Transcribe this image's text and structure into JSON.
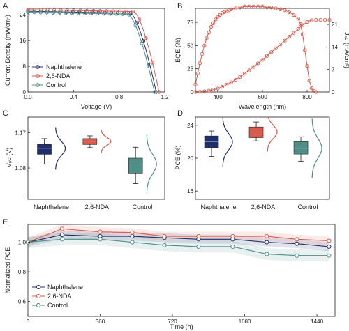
{
  "chart_data": [
    {
      "panel": "A",
      "type": "line",
      "xlabel": "Voltage (V)",
      "ylabel": "Current Density (mA/cm²)",
      "xlim": [
        0,
        1.2
      ],
      "ylim": [
        0,
        26
      ],
      "xticks": [
        "0.0",
        "0.4",
        "0.8",
        "1.2"
      ],
      "xtick_values": [
        0,
        0.4,
        0.8,
        1.2
      ],
      "yticks": [
        "0",
        "8",
        "16",
        "24"
      ],
      "ytick_values": [
        0,
        8,
        16,
        24
      ],
      "legend_loc": "bottom-left",
      "series": [
        {
          "name": "Naphthalene",
          "color": "#1f2f6e",
          "jsc": 25.1,
          "voc": 1.125,
          "knee": 0.9
        },
        {
          "name": "2,6-NDA",
          "color": "#d9594c",
          "jsc": 25.6,
          "voc": 1.15,
          "knee": 0.93
        },
        {
          "name": "Control",
          "color": "#4e8f8a",
          "jsc": 24.8,
          "voc": 1.11,
          "knee": 0.88
        }
      ]
    },
    {
      "panel": "B",
      "type": "line",
      "xlabel": "Wavelength (nm)",
      "ylabel": "EQE (%)",
      "ylabel_right": "Jₛᴄ (mA/cm²)",
      "xlim": [
        300,
        900
      ],
      "ylim": [
        0,
        90
      ],
      "ylim_right": [
        0,
        26
      ],
      "xticks": [
        "400",
        "600",
        "800"
      ],
      "xtick_values": [
        400,
        600,
        800
      ],
      "yticks": [
        "0",
        "25",
        "50",
        "75"
      ],
      "ytick_values": [
        0,
        25,
        50,
        75
      ],
      "yticks_right": [
        "0",
        "7",
        "14",
        "21"
      ],
      "ytick_right_values": [
        0,
        7,
        14,
        21
      ],
      "color": "#d9594c",
      "eqe": {
        "x": [
          300,
          310,
          320,
          330,
          340,
          350,
          360,
          370,
          380,
          390,
          400,
          410,
          420,
          430,
          440,
          450,
          460,
          480,
          500,
          520,
          540,
          560,
          580,
          600,
          620,
          640,
          660,
          680,
          700,
          720,
          740,
          760,
          770,
          780,
          790,
          800,
          810,
          820,
          830,
          840
        ],
        "y": [
          8,
          20,
          31,
          41,
          50,
          58,
          64,
          70,
          74,
          78,
          81,
          83,
          85,
          86,
          87,
          88,
          89,
          90,
          91,
          92,
          92,
          92,
          92,
          92,
          91,
          91,
          90,
          89,
          88,
          86,
          83,
          79,
          73,
          62,
          45,
          28,
          12,
          4,
          1,
          0
        ]
      },
      "jsc_integrated": {
        "x": [
          300,
          320,
          340,
          360,
          380,
          400,
          420,
          440,
          460,
          480,
          500,
          520,
          540,
          560,
          580,
          600,
          620,
          640,
          660,
          680,
          700,
          720,
          740,
          760,
          780,
          800,
          820,
          840,
          860,
          880,
          900
        ],
        "y": [
          0,
          0.05,
          0.2,
          0.4,
          0.7,
          1.1,
          1.6,
          2.3,
          3,
          3.8,
          4.7,
          5.7,
          6.7,
          7.8,
          8.9,
          10,
          11.2,
          12.4,
          13.6,
          14.8,
          16,
          17.2,
          18.4,
          19.6,
          20.8,
          21.8,
          22.3,
          22.4,
          22.4,
          22.4,
          22.4
        ]
      }
    },
    {
      "panel": "C",
      "type": "box",
      "ylabel": "Vₒᴄ (V)",
      "ylim": [
        1.0,
        1.21
      ],
      "yticks": [
        "1.08",
        "1.17"
      ],
      "ytick_values": [
        1.08,
        1.17
      ],
      "categories": [
        "Naphthalene",
        "2,6-NDA",
        "Control"
      ],
      "boxes": [
        {
          "color": "#1f2f6e",
          "min": 1.09,
          "q1": 1.115,
          "median": 1.13,
          "q3": 1.14,
          "max": 1.155,
          "curve_mean": 1.13,
          "curve_sd": 0.018
        },
        {
          "color": "#d9594c",
          "min": 1.132,
          "q1": 1.14,
          "median": 1.148,
          "q3": 1.155,
          "max": 1.162,
          "curve_mean": 1.148,
          "curve_sd": 0.01
        },
        {
          "color": "#4e8f8a",
          "min": 1.04,
          "q1": 1.067,
          "median": 1.09,
          "q3": 1.105,
          "max": 1.133,
          "curve_mean": 1.09,
          "curve_sd": 0.025
        }
      ]
    },
    {
      "panel": "D",
      "type": "box",
      "ylabel": "PCE (%)",
      "ylim": [
        15,
        25
      ],
      "yticks": [
        "16",
        "20",
        "24"
      ],
      "ytick_values": [
        16,
        20,
        24
      ],
      "categories": [
        "Naphthalene",
        "2,6-NDA",
        "Control"
      ],
      "boxes": [
        {
          "color": "#1f2f6e",
          "min": 20.2,
          "q1": 21.3,
          "median": 22,
          "q3": 22.7,
          "max": 23.3,
          "curve_mean": 22,
          "curve_sd": 1.0
        },
        {
          "color": "#d9594c",
          "min": 22.1,
          "q1": 22.5,
          "median": 23.2,
          "q3": 23.8,
          "max": 24.4,
          "curve_mean": 23.2,
          "curve_sd": 0.8
        },
        {
          "color": "#4e8f8a",
          "min": 19.6,
          "q1": 20.5,
          "median": 21.2,
          "q3": 22.0,
          "max": 22.6,
          "curve_mean": 21.2,
          "curve_sd": 1.2
        }
      ]
    },
    {
      "panel": "E",
      "type": "line",
      "xlabel": "Time (h)",
      "ylabel": "Normalized PCE",
      "xlim": [
        0,
        1530
      ],
      "ylim": [
        0.5,
        1.12
      ],
      "xticks": [
        "0",
        "360",
        "720",
        "1080",
        "1440"
      ],
      "xtick_values": [
        0,
        360,
        720,
        1080,
        1440
      ],
      "yticks": [
        "0.6",
        "0.8",
        "1.0"
      ],
      "ytick_values": [
        0.6,
        0.8,
        1.0
      ],
      "legend_loc": "bottom-left",
      "x": [
        0,
        170,
        360,
        520,
        680,
        850,
        1020,
        1190,
        1340,
        1500
      ],
      "series": [
        {
          "name": "Naphthalene",
          "color": "#1f2f6e",
          "values": [
            1.0,
            1.05,
            1.04,
            1.04,
            1.03,
            1.02,
            1.02,
            1.0,
            0.99,
            0.97
          ],
          "band": 0.03
        },
        {
          "name": "2,6-NDA",
          "color": "#d9594c",
          "values": [
            1.0,
            1.09,
            1.07,
            1.065,
            1.04,
            1.04,
            1.04,
            1.04,
            1.02,
            1.01
          ],
          "band": 0.03
        },
        {
          "name": "Control",
          "color": "#4e8f8a",
          "values": [
            1.0,
            1.02,
            1.02,
            1.0,
            0.98,
            0.97,
            0.97,
            0.92,
            0.91,
            0.91
          ],
          "band": 0.04
        }
      ]
    }
  ]
}
